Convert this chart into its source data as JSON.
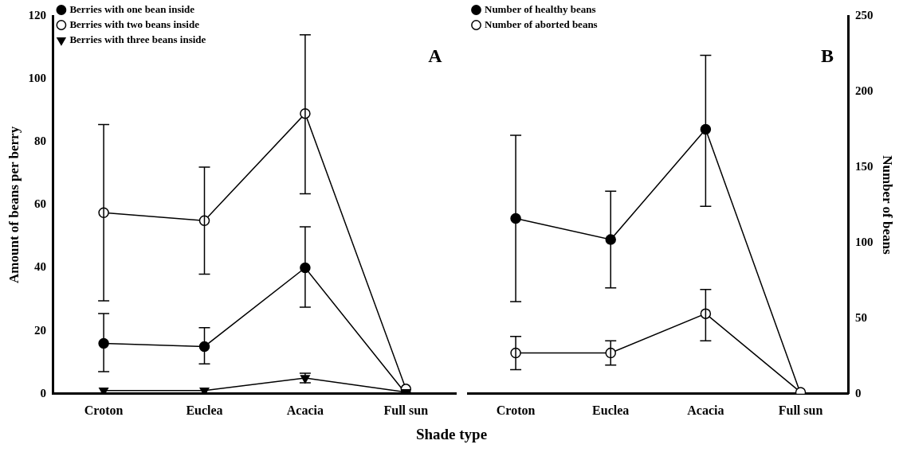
{
  "chart_data": [
    {
      "type": "line",
      "ylabel": "Amount of beans per berry",
      "xlabel": "Shade type",
      "annotations": [
        "A"
      ],
      "categories": [
        "Croton",
        "Euclea",
        "Acacia",
        "Full sun"
      ],
      "ylim": [
        0,
        120
      ],
      "yticks": [
        0,
        20,
        40,
        60,
        80,
        100,
        120
      ],
      "grid": false,
      "legend": "top left",
      "series": [
        {
          "name": "Berries with one bean inside",
          "color": "#000000",
          "marker": "circle",
          "values": [
            16,
            15,
            40,
            0
          ],
          "errors": [
            [
              7,
              25.5
            ],
            [
              9.5,
              21
            ],
            [
              27.5,
              53
            ],
            null
          ]
        },
        {
          "name": "Berries with two beans inside",
          "color": "#000000",
          "colors": [
            "#ffffff",
            "#ffffff",
            "#ffffff",
            "#ffffff"
          ],
          "marker": "circle",
          "values": [
            57.5,
            55,
            89,
            1.5
          ],
          "errors": [
            [
              29.5,
              85.5
            ],
            [
              38,
              72
            ],
            [
              63.5,
              114
            ],
            null
          ]
        },
        {
          "name": "Berries with three beans inside",
          "color": "#000000",
          "marker": "triangle",
          "values": [
            1,
            1,
            5,
            0.5
          ],
          "errors": [
            null,
            null,
            [
              3.5,
              6.5
            ],
            null
          ]
        }
      ]
    },
    {
      "type": "line",
      "y2label": "Number of beans",
      "annotations": [
        "B"
      ],
      "categories": [
        "Croton",
        "Euclea",
        "Acacia",
        "Full sun"
      ],
      "y2lim": [
        0,
        250
      ],
      "y2ticks": [
        0,
        50,
        100,
        150,
        200,
        250
      ],
      "grid": false,
      "legend": "top left",
      "series": [
        {
          "name": "Number of healthy beans",
          "color": "#000000",
          "marker": "circle",
          "axis": "y2",
          "values": [
            116,
            102,
            175,
            0
          ],
          "errors": [
            [
              61,
              171
            ],
            [
              70,
              134
            ],
            [
              124,
              224
            ],
            null
          ]
        },
        {
          "name": "Number of aborted beans",
          "color": "#000000",
          "colors": [
            "#ffffff",
            "#ffffff",
            "#ffffff",
            "#ffffff"
          ],
          "marker": "circle",
          "axis": "y2",
          "values": [
            27,
            27,
            53,
            1
          ],
          "errors": [
            [
              16,
              38
            ],
            [
              19,
              35
            ],
            [
              35,
              69
            ],
            null
          ]
        }
      ]
    }
  ]
}
